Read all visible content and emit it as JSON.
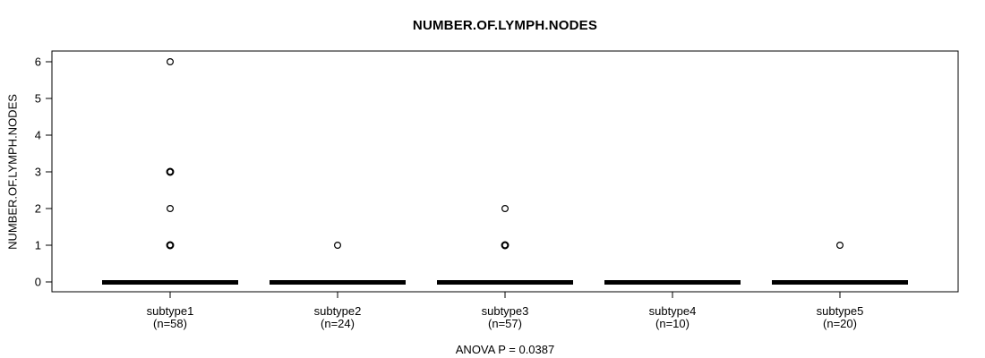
{
  "chart_data": {
    "type": "boxplot",
    "title": "NUMBER.OF.LYMPH.NODES",
    "ylabel": "NUMBER.OF.LYMPH.NODES",
    "xlabel": "",
    "annotation": "ANOVA P = 0.0387",
    "ylim": [
      0,
      6
    ],
    "yticks": [
      0,
      1,
      2,
      3,
      4,
      5,
      6
    ],
    "grid": false,
    "legend": "none",
    "groups": [
      {
        "label": "subtype1",
        "sublabel": "(n=58)",
        "n": 58,
        "median": 0,
        "q1": 0,
        "q3": 0,
        "whisker_low": 0,
        "whisker_high": 0,
        "outliers": [
          1,
          1,
          2,
          3,
          3,
          6
        ]
      },
      {
        "label": "subtype2",
        "sublabel": "(n=24)",
        "n": 24,
        "median": 0,
        "q1": 0,
        "q3": 0,
        "whisker_low": 0,
        "whisker_high": 0,
        "outliers": [
          1
        ]
      },
      {
        "label": "subtype3",
        "sublabel": "(n=57)",
        "n": 57,
        "median": 0,
        "q1": 0,
        "q3": 0,
        "whisker_low": 0,
        "whisker_high": 0,
        "outliers": [
          1,
          1,
          2
        ]
      },
      {
        "label": "subtype4",
        "sublabel": "(n=10)",
        "n": 10,
        "median": 0,
        "q1": 0,
        "q3": 0,
        "whisker_low": 0,
        "whisker_high": 0,
        "outliers": []
      },
      {
        "label": "subtype5",
        "sublabel": "(n=20)",
        "n": 20,
        "median": 0,
        "q1": 0,
        "q3": 0,
        "whisker_low": 0,
        "whisker_high": 0,
        "outliers": [
          1
        ]
      }
    ],
    "colors": {
      "box": "#000000",
      "frame": "#000000",
      "text": "#000000",
      "background": "#ffffff"
    }
  }
}
